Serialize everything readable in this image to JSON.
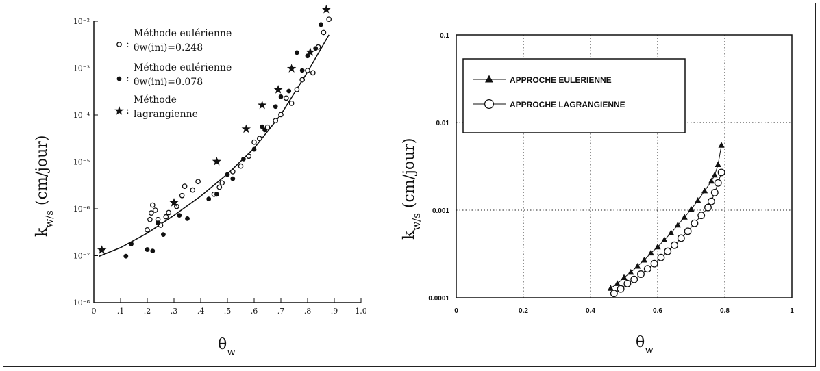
{
  "chart_data": [
    {
      "type": "scatter",
      "xlabel": "θw",
      "ylabel": "kw/s (cm/jour)",
      "xlim": [
        0,
        1.0
      ],
      "ylim_log10": [
        -8,
        -2
      ],
      "x_scale": "linear",
      "y_scale": "log",
      "x_ticks": [
        {
          "v": 0,
          "label": "0"
        },
        {
          "v": 0.1,
          "label": ".1"
        },
        {
          "v": 0.2,
          "label": ".2"
        },
        {
          "v": 0.3,
          "label": ".3"
        },
        {
          "v": 0.4,
          "label": ".4"
        },
        {
          "v": 0.5,
          "label": ".5"
        },
        {
          "v": 0.6,
          "label": ".6"
        },
        {
          "v": 0.7,
          "label": ".7"
        },
        {
          "v": 0.8,
          "label": ".8"
        },
        {
          "v": 0.9,
          "label": ".9"
        },
        {
          "v": 1.0,
          "label": "1.0"
        }
      ],
      "y_ticks": [
        {
          "exp": -8,
          "label": "10⁻⁸"
        },
        {
          "exp": -7,
          "label": "10⁻⁷"
        },
        {
          "exp": -6,
          "label": "10⁻⁶"
        },
        {
          "exp": -5,
          "label": "10⁻⁵"
        },
        {
          "exp": -4,
          "label": "10⁻⁴"
        },
        {
          "exp": -3,
          "label": "10⁻³"
        },
        {
          "exp": -2,
          "label": "10⁻²"
        }
      ],
      "legend_position": "top-center",
      "series": [
        {
          "name": "Méthode eulérienne θw(ini)=0.248",
          "legend_lines": [
            "Méthode eulérienne",
            "θw(ini)=0.248"
          ],
          "marker": "open-circle",
          "points": [
            [
              0.2,
              3.55e-07
            ],
            [
              0.21,
              5.89e-07
            ],
            [
              0.215,
              8.13e-07
            ],
            [
              0.22,
              1.2e-06
            ],
            [
              0.23,
              9.33e-07
            ],
            [
              0.24,
              5.89e-07
            ],
            [
              0.25,
              4.47e-07
            ],
            [
              0.27,
              6.76e-07
            ],
            [
              0.28,
              8.32e-07
            ],
            [
              0.31,
              1.12e-06
            ],
            [
              0.33,
              1.91e-06
            ],
            [
              0.34,
              3.02e-06
            ],
            [
              0.37,
              2.51e-06
            ],
            [
              0.39,
              3.8e-06
            ],
            [
              0.45,
              2.04e-06
            ],
            [
              0.47,
              2.88e-06
            ],
            [
              0.48,
              3.55e-06
            ],
            [
              0.52,
              6.17e-06
            ],
            [
              0.55,
              8.13e-06
            ],
            [
              0.58,
              1.32e-05
            ],
            [
              0.6,
              2.63e-05
            ],
            [
              0.62,
              3.16e-05
            ],
            [
              0.65,
              5.5e-05
            ],
            [
              0.68,
              7.59e-05
            ],
            [
              0.7,
              0.000102
            ],
            [
              0.72,
              0.000229
            ],
            [
              0.74,
              0.000178
            ],
            [
              0.76,
              0.000347
            ],
            [
              0.78,
              0.000562
            ],
            [
              0.8,
              0.000891
            ],
            [
              0.82,
              0.000794
            ],
            [
              0.84,
              0.00282
            ],
            [
              0.86,
              0.00575
            ],
            [
              0.88,
              0.011
            ]
          ]
        },
        {
          "name": "Méthode eulérienne θw(ini)=0.078",
          "legend_lines": [
            "Méthode eulérienne",
            "θw(ini)=0.078"
          ],
          "marker": "filled-circle",
          "points": [
            [
              0.12,
              9.77e-08
            ],
            [
              0.14,
              1.78e-07
            ],
            [
              0.2,
              1.35e-07
            ],
            [
              0.22,
              1.26e-07
            ],
            [
              0.24,
              5.01e-07
            ],
            [
              0.26,
              2.82e-07
            ],
            [
              0.32,
              7.24e-07
            ],
            [
              0.35,
              6.17e-07
            ],
            [
              0.43,
              1.62e-06
            ],
            [
              0.46,
              2.04e-06
            ],
            [
              0.5,
              5.37e-06
            ],
            [
              0.52,
              4.37e-06
            ],
            [
              0.56,
              1.15e-05
            ],
            [
              0.6,
              1.86e-05
            ],
            [
              0.63,
              5.62e-05
            ],
            [
              0.64,
              4.79e-05
            ],
            [
              0.68,
              0.000151
            ],
            [
              0.7,
              0.000245
            ],
            [
              0.73,
              0.000324
            ],
            [
              0.76,
              0.00214
            ],
            [
              0.78,
              0.000891
            ],
            [
              0.8,
              0.00182
            ],
            [
              0.83,
              0.00263
            ],
            [
              0.85,
              0.00851
            ]
          ]
        },
        {
          "name": "Méthode lagrangienne",
          "legend_lines": [
            "Méthode",
            "lagrangienne"
          ],
          "marker": "star",
          "points": [
            [
              0.03,
              1.32e-07
            ],
            [
              0.3,
              1.35e-06
            ],
            [
              0.46,
              1.02e-05
            ],
            [
              0.57,
              5.01e-05
            ],
            [
              0.63,
              0.000162
            ],
            [
              0.69,
              0.000347
            ],
            [
              0.74,
              0.000977
            ],
            [
              0.81,
              0.00219
            ],
            [
              0.87,
              0.0178
            ]
          ]
        }
      ],
      "fit_curve": [
        [
          0.02,
          9.77e-08
        ],
        [
          0.1,
          1.48e-07
        ],
        [
          0.2,
          3.02e-07
        ],
        [
          0.3,
          7.24e-07
        ],
        [
          0.4,
          1.86e-06
        ],
        [
          0.5,
          5.5e-06
        ],
        [
          0.6,
          1.95e-05
        ],
        [
          0.7,
          0.000102
        ],
        [
          0.8,
          0.000832
        ],
        [
          0.88,
          0.00513
        ]
      ]
    },
    {
      "type": "line",
      "xlabel": "θw",
      "ylabel": "kw/s (cm/jour)",
      "xlim": [
        0,
        1
      ],
      "ylim_log10": [
        -4,
        -1
      ],
      "x_scale": "linear",
      "y_scale": "log",
      "grid": true,
      "x_ticks": [
        {
          "v": 0,
          "label": "0"
        },
        {
          "v": 0.2,
          "label": "0.2"
        },
        {
          "v": 0.4,
          "label": "0.4"
        },
        {
          "v": 0.6,
          "label": "0.6"
        },
        {
          "v": 0.8,
          "label": "0.8"
        },
        {
          "v": 1,
          "label": "1"
        }
      ],
      "y_ticks": [
        {
          "exp": -4,
          "label": "0.0001"
        },
        {
          "exp": -3,
          "label": "0.001"
        },
        {
          "exp": -2,
          "label": "0.01"
        },
        {
          "exp": -1,
          "label": "0.1"
        }
      ],
      "legend_position": "top-left",
      "series": [
        {
          "name": "APPROCHE EULERIENNE",
          "marker": "filled-triangle",
          "points": [
            [
              0.46,
              0.000128
            ],
            [
              0.48,
              0.000145
            ],
            [
              0.5,
              0.00017
            ],
            [
              0.52,
              0.000195
            ],
            [
              0.54,
              0.000229
            ],
            [
              0.56,
              0.000269
            ],
            [
              0.58,
              0.000324
            ],
            [
              0.6,
              0.00038
            ],
            [
              0.62,
              0.000457
            ],
            [
              0.64,
              0.00055
            ],
            [
              0.66,
              0.000676
            ],
            [
              0.68,
              0.000832
            ],
            [
              0.7,
              0.001023
            ],
            [
              0.72,
              0.001288
            ],
            [
              0.74,
              0.00166
            ],
            [
              0.76,
              0.002138
            ],
            [
              0.77,
              0.002512
            ],
            [
              0.78,
              0.003311
            ],
            [
              0.79,
              0.005495
            ]
          ]
        },
        {
          "name": "APPROCHE LAGRANGIENNE",
          "marker": "open-circle",
          "points": [
            [
              0.47,
              0.000112
            ],
            [
              0.49,
              0.000126
            ],
            [
              0.51,
              0.000145
            ],
            [
              0.53,
              0.000162
            ],
            [
              0.55,
              0.000186
            ],
            [
              0.57,
              0.000214
            ],
            [
              0.59,
              0.000245
            ],
            [
              0.61,
              0.000288
            ],
            [
              0.63,
              0.000339
            ],
            [
              0.65,
              0.000398
            ],
            [
              0.67,
              0.000479
            ],
            [
              0.69,
              0.000575
            ],
            [
              0.71,
              0.000708
            ],
            [
              0.73,
              0.000871
            ],
            [
              0.75,
              0.001072
            ],
            [
              0.76,
              0.001259
            ],
            [
              0.77,
              0.001585
            ],
            [
              0.78,
              0.002042
            ],
            [
              0.79,
              0.002692
            ]
          ]
        }
      ]
    }
  ]
}
